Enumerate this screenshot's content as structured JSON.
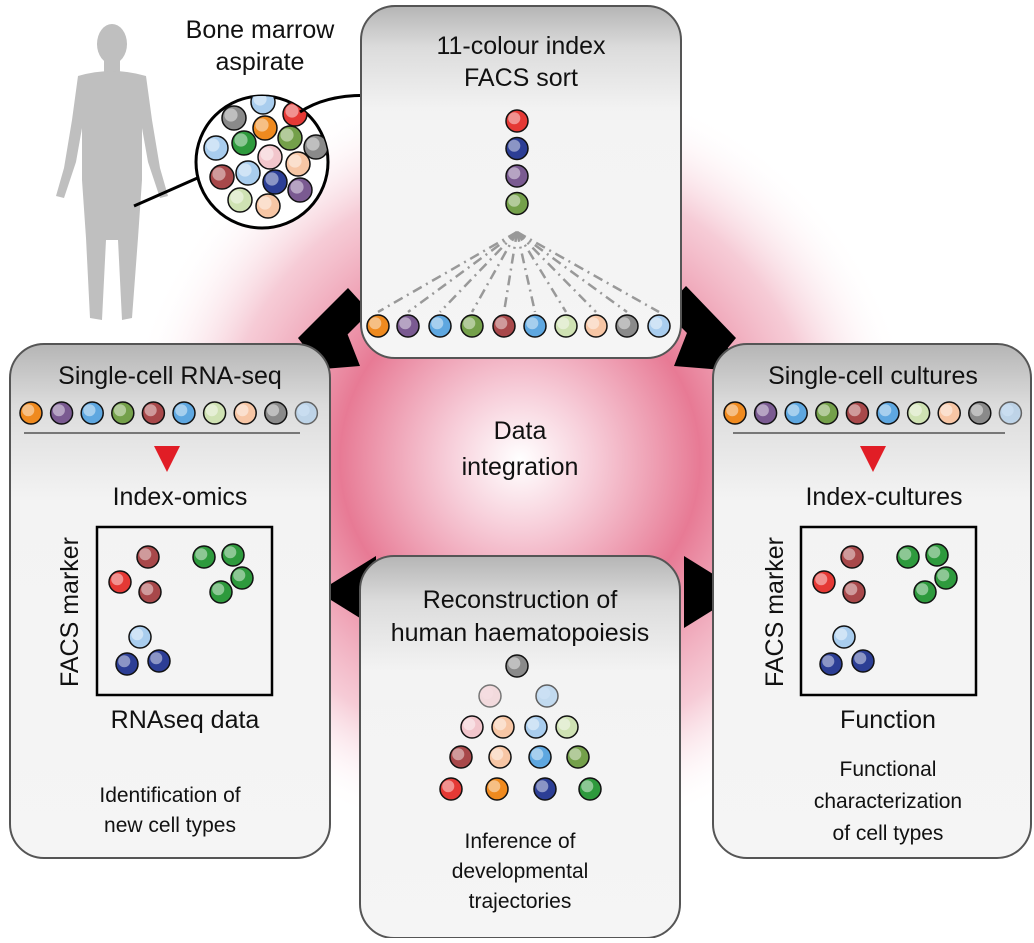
{
  "colors": {
    "glow": "#e6738f",
    "panel_top": "#bdbdbd",
    "panel_bottom": "#f2f2f2",
    "panel_border": "#555555",
    "body": "#bfbfbf",
    "arrow": "#000000",
    "red_arrow": "#e11d26",
    "cells": {
      "red": "#e53935",
      "darkred": "#a8484a",
      "navy": "#2c3e95",
      "purple": "#7a5a91",
      "olive": "#74a04a",
      "green": "#2e9a3d",
      "orange": "#ef8a1f",
      "blue": "#5ea7e0",
      "lightblue": "#a9cdee",
      "lightgreen": "#cfe2b3",
      "peach": "#f7c6a5",
      "pink": "#f2c6cc",
      "gray": "#8a8a8a"
    }
  },
  "intro": {
    "label_line1": "Bone marrow",
    "label_line2": "aspirate",
    "icon": "human-body-icon"
  },
  "facs_panel": {
    "title_line1": "11-colour index",
    "title_line2": "FACS sort",
    "stack_cells": [
      "red",
      "navy",
      "purple",
      "olive"
    ],
    "row_cells": [
      "orange",
      "purple",
      "blue",
      "olive",
      "darkred",
      "blue",
      "lightgreen",
      "peach",
      "gray",
      "lightblue"
    ]
  },
  "rna_panel": {
    "title": "Single-cell RNA-seq",
    "row_cells": [
      "orange",
      "purple",
      "blue",
      "olive",
      "darkred",
      "blue",
      "lightgreen",
      "peach",
      "gray",
      "lightblue"
    ],
    "subtitle": "Index-omics",
    "y_axis": "FACS marker",
    "x_axis": "RNAseq data",
    "caption_line1": "Identification of",
    "caption_line2": "new cell types"
  },
  "culture_panel": {
    "title": "Single-cell cultures",
    "row_cells": [
      "orange",
      "purple",
      "blue",
      "olive",
      "darkred",
      "blue",
      "lightgreen",
      "peach",
      "gray",
      "lightblue"
    ],
    "subtitle": "Index-cultures",
    "y_axis": "FACS marker",
    "x_axis": "Function",
    "caption_line1": "Functional",
    "caption_line2": "characterization",
    "caption_line3": "of cell types"
  },
  "center": {
    "line1": "Data",
    "line2": "integration"
  },
  "reconstruction_panel": {
    "title_line1": "Reconstruction of",
    "title_line2": "human haematopoiesis",
    "caption_line1": "Inference of",
    "caption_line2": "developmental",
    "caption_line3": "trajectories"
  }
}
